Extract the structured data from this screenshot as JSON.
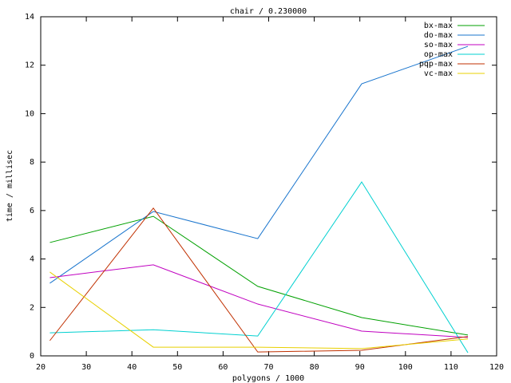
{
  "chart_data": {
    "type": "line",
    "title": "chair / 0.230000",
    "x_label": "polygons / 1000",
    "y_label": "time / millisec",
    "x": [
      22,
      44.7,
      67.6,
      90.4,
      113.7
    ],
    "series": [
      {
        "name": "bx-max",
        "color": "#00a000",
        "values": [
          4.68,
          5.76,
          2.87,
          1.58,
          0.86
        ]
      },
      {
        "name": "do-max",
        "color": "#1874cd",
        "values": [
          3.0,
          5.96,
          4.84,
          11.23,
          12.78
        ]
      },
      {
        "name": "so-max",
        "color": "#c000c0",
        "values": [
          3.23,
          3.76,
          2.14,
          1.02,
          0.76
        ]
      },
      {
        "name": "op-max",
        "color": "#00d0d0",
        "values": [
          0.95,
          1.08,
          0.82,
          7.18,
          0.13
        ]
      },
      {
        "name": "pqp-max",
        "color": "#c03000",
        "values": [
          0.63,
          6.1,
          0.16,
          0.23,
          0.8
        ]
      },
      {
        "name": "vc-max",
        "color": "#e8d000",
        "values": [
          3.46,
          0.36,
          0.36,
          0.3,
          0.7
        ]
      }
    ],
    "xlim": [
      20,
      120
    ],
    "xticks": [
      20,
      30,
      40,
      50,
      60,
      70,
      80,
      90,
      100,
      110,
      120
    ],
    "ylim": [
      0,
      14
    ],
    "yticks": [
      0,
      2,
      4,
      6,
      8,
      10,
      12,
      14
    ],
    "legend": "top-right"
  }
}
